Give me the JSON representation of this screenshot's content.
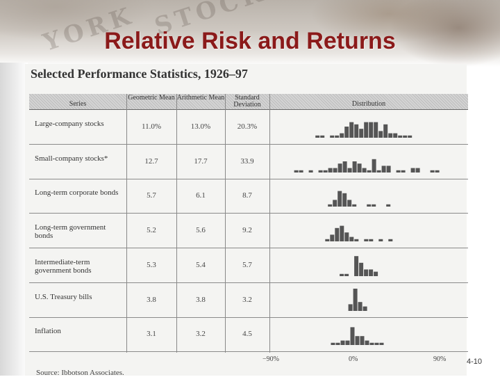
{
  "slide": {
    "title": "Relative Risk and Returns",
    "page_number": "4-10"
  },
  "scan": {
    "title": "Selected Performance Statistics, 1926–97",
    "source": "Source: Ibbotson Associates.",
    "headers": {
      "series": "Series",
      "geometric": "Geometric Mean",
      "arithmetic": "Arithmetic Mean",
      "std_dev": "Standard Deviation",
      "distribution": "Distribution"
    },
    "axis": {
      "left": "−90%",
      "center": "0%",
      "right": "90%"
    },
    "rows": [
      {
        "series": "Large-company stocks",
        "geometric": "11.0%",
        "arithmetic": "13.0%",
        "std_dev": "20.3%",
        "distribution": [
          1,
          1,
          0,
          1,
          1,
          2,
          5,
          7,
          6,
          4,
          7,
          7,
          7,
          3,
          6,
          2,
          2,
          1,
          1,
          1
        ]
      },
      {
        "series": "Small-company stocks*",
        "geometric": "12.7",
        "arithmetic": "17.7",
        "std_dev": "33.9",
        "distribution": [
          1,
          1,
          0,
          1,
          0,
          1,
          1,
          2,
          2,
          4,
          5,
          2,
          5,
          4,
          2,
          1,
          6,
          1,
          3,
          3,
          0,
          1,
          1,
          0,
          2,
          2,
          0,
          0,
          1,
          1
        ]
      },
      {
        "series": "Long-term corporate bonds",
        "geometric": "5.7",
        "arithmetic": "6.1",
        "std_dev": "8.7",
        "distribution": [
          1,
          3,
          7,
          6,
          3,
          1,
          0,
          0,
          1,
          1,
          0,
          0,
          1
        ]
      },
      {
        "series": "Long-term government bonds",
        "geometric": "5.2",
        "arithmetic": "5.6",
        "std_dev": "9.2",
        "distribution": [
          1,
          3,
          6,
          7,
          4,
          2,
          1,
          0,
          1,
          1,
          0,
          1,
          0,
          1
        ]
      },
      {
        "series": "Intermediate-term government bonds",
        "geometric": "5.3",
        "arithmetic": "5.4",
        "std_dev": "5.7",
        "distribution": [
          1,
          1,
          0,
          9,
          6,
          3,
          3,
          2
        ]
      },
      {
        "series": "U.S. Treasury bills",
        "geometric": "3.8",
        "arithmetic": "3.8",
        "std_dev": "3.2",
        "distribution": [
          3,
          10,
          4,
          2
        ]
      },
      {
        "series": "Inflation",
        "geometric": "3.1",
        "arithmetic": "3.2",
        "std_dev": "4.5",
        "distribution": [
          1,
          1,
          2,
          2,
          8,
          4,
          4,
          2,
          1,
          1,
          1
        ]
      }
    ]
  }
}
